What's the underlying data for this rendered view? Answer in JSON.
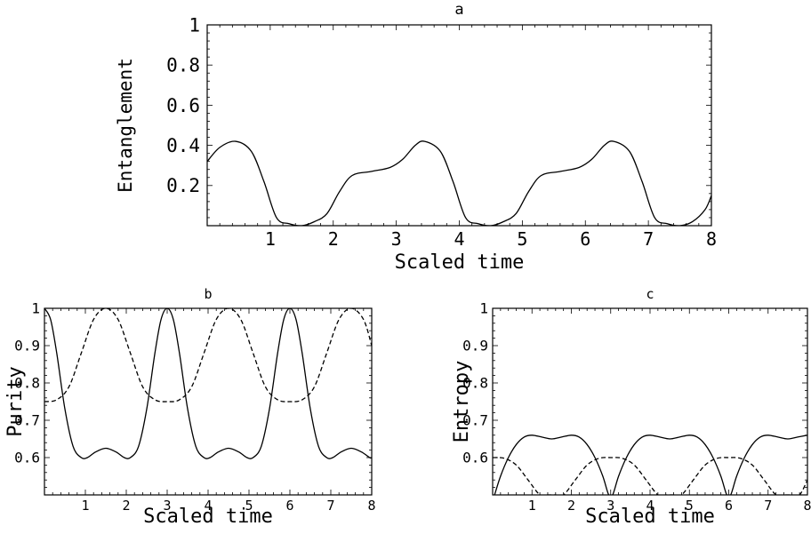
{
  "chart_data": [
    {
      "type": "line",
      "title": "a",
      "xlabel": "Scaled time",
      "ylabel": "Entanglement",
      "xlim": [
        0,
        8
      ],
      "ylim": [
        0,
        1
      ],
      "xticks": [
        1,
        2,
        3,
        4,
        5,
        6,
        7,
        8
      ],
      "yticks": [
        0.2,
        0.4,
        0.6,
        0.8,
        1
      ],
      "ytick_labels": [
        "0.2",
        "0.4",
        "0.6",
        "0.8",
        "1"
      ],
      "series": [
        {
          "style": "solid",
          "x": [
            0,
            0.2,
            0.45,
            0.7,
            0.9,
            1.1,
            1.3,
            1.5,
            1.7,
            1.9,
            2.1,
            2.3,
            2.6,
            2.9,
            3.1,
            3.3,
            3.45,
            3.7,
            3.9,
            4.1,
            4.3,
            4.5,
            4.7,
            4.9,
            5.1,
            5.3,
            5.6,
            5.9,
            6.1,
            6.3,
            6.45,
            6.7,
            6.9,
            7.1,
            7.3,
            7.5,
            7.7,
            7.9,
            8
          ],
          "y": [
            0.32,
            0.39,
            0.42,
            0.37,
            0.22,
            0.04,
            0.01,
            0.0,
            0.02,
            0.06,
            0.17,
            0.25,
            0.27,
            0.29,
            0.33,
            0.4,
            0.42,
            0.37,
            0.22,
            0.04,
            0.01,
            0.0,
            0.02,
            0.06,
            0.17,
            0.25,
            0.27,
            0.29,
            0.33,
            0.4,
            0.42,
            0.37,
            0.22,
            0.04,
            0.01,
            0.0,
            0.02,
            0.08,
            0.15
          ]
        }
      ]
    },
    {
      "type": "line",
      "title": "b",
      "xlabel": "Scaled time",
      "ylabel": "Purity",
      "xlim": [
        0,
        8
      ],
      "ylim": [
        0.5,
        1
      ],
      "xticks": [
        1,
        2,
        3,
        4,
        5,
        6,
        7,
        8
      ],
      "yticks": [
        0.6,
        0.7,
        0.8,
        0.9,
        1
      ],
      "ytick_labels": [
        "0.6",
        "0.7",
        "0.8",
        "0.9",
        "1"
      ],
      "series": [
        {
          "style": "solid",
          "x": [
            0,
            0.15,
            0.3,
            0.5,
            0.7,
            0.9,
            1.05,
            1.25,
            1.5,
            1.75,
            1.95,
            2.1,
            2.3,
            2.5,
            2.7,
            2.85,
            3,
            3.15,
            3.3,
            3.5,
            3.7,
            3.9,
            4.05,
            4.25,
            4.5,
            4.75,
            4.95,
            5.1,
            5.3,
            5.5,
            5.7,
            5.85,
            6,
            6.15,
            6.3,
            6.5,
            6.7,
            6.9,
            7.05,
            7.25,
            7.5,
            7.75,
            7.95,
            8
          ],
          "y": [
            1.0,
            0.97,
            0.88,
            0.73,
            0.63,
            0.6,
            0.6,
            0.615,
            0.625,
            0.615,
            0.6,
            0.6,
            0.63,
            0.73,
            0.88,
            0.97,
            1.0,
            0.97,
            0.88,
            0.73,
            0.63,
            0.6,
            0.6,
            0.615,
            0.625,
            0.615,
            0.6,
            0.6,
            0.63,
            0.73,
            0.88,
            0.97,
            1.0,
            0.97,
            0.88,
            0.73,
            0.63,
            0.6,
            0.6,
            0.615,
            0.625,
            0.615,
            0.6,
            0.6
          ]
        },
        {
          "style": "dashed",
          "x": [
            0,
            0.3,
            0.6,
            0.9,
            1.2,
            1.5,
            1.8,
            2.1,
            2.4,
            2.7,
            3,
            3.3,
            3.6,
            3.9,
            4.2,
            4.5,
            4.8,
            5.1,
            5.4,
            5.7,
            6,
            6.3,
            6.6,
            6.9,
            7.2,
            7.5,
            7.8,
            8
          ],
          "y": [
            0.75,
            0.755,
            0.79,
            0.88,
            0.97,
            1.0,
            0.97,
            0.88,
            0.79,
            0.755,
            0.75,
            0.755,
            0.79,
            0.88,
            0.97,
            1.0,
            0.97,
            0.88,
            0.79,
            0.755,
            0.75,
            0.755,
            0.79,
            0.88,
            0.97,
            1.0,
            0.97,
            0.9
          ]
        }
      ]
    },
    {
      "type": "line",
      "title": "c",
      "xlabel": "Scaled time",
      "ylabel": "Entropy",
      "xlim": [
        0,
        8
      ],
      "ylim": [
        0.5,
        1
      ],
      "xticks": [
        1,
        2,
        3,
        4,
        5,
        6,
        7,
        8
      ],
      "yticks": [
        0.6,
        0.7,
        0.8,
        0.9,
        1
      ],
      "ytick_labels": [
        "0.6",
        "0.7",
        "0.8",
        "0.9",
        "1"
      ],
      "series": [
        {
          "style": "solid",
          "x": [
            0.05,
            0.2,
            0.4,
            0.6,
            0.8,
            1.0,
            1.25,
            1.5,
            1.75,
            2.0,
            2.2,
            2.4,
            2.6,
            2.8,
            2.95,
            3.05,
            3.2,
            3.4,
            3.6,
            3.8,
            4.0,
            4.25,
            4.5,
            4.75,
            5.0,
            5.2,
            5.4,
            5.6,
            5.8,
            5.95,
            6.05,
            6.2,
            6.4,
            6.6,
            6.8,
            7.0,
            7.25,
            7.5,
            7.75,
            8.0
          ],
          "y": [
            0.5,
            0.55,
            0.6,
            0.635,
            0.655,
            0.66,
            0.655,
            0.65,
            0.655,
            0.66,
            0.655,
            0.635,
            0.6,
            0.55,
            0.5,
            0.5,
            0.55,
            0.6,
            0.635,
            0.655,
            0.66,
            0.655,
            0.65,
            0.655,
            0.66,
            0.655,
            0.635,
            0.6,
            0.55,
            0.5,
            0.5,
            0.55,
            0.6,
            0.635,
            0.655,
            0.66,
            0.655,
            0.65,
            0.655,
            0.66
          ]
        },
        {
          "style": "dashed",
          "x": [
            0,
            0.3,
            0.6,
            0.9,
            1.2,
            1.4,
            1.6,
            1.8,
            2.1,
            2.4,
            2.7,
            3,
            3.3,
            3.6,
            3.9,
            4.2,
            4.4,
            4.6,
            4.8,
            5.1,
            5.4,
            5.7,
            6,
            6.3,
            6.6,
            6.9,
            7.2,
            7.4,
            7.6,
            7.8,
            8
          ],
          "y": [
            0.6,
            0.598,
            0.58,
            0.54,
            0.5,
            0.5,
            0.5,
            0.5,
            0.54,
            0.58,
            0.598,
            0.6,
            0.598,
            0.58,
            0.54,
            0.5,
            0.5,
            0.5,
            0.5,
            0.54,
            0.58,
            0.598,
            0.6,
            0.598,
            0.58,
            0.54,
            0.5,
            0.5,
            0.5,
            0.5,
            0.54
          ]
        }
      ]
    }
  ]
}
